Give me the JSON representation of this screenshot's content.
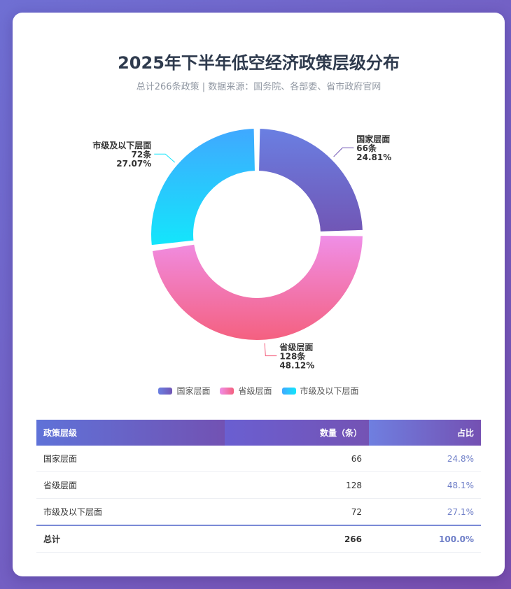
{
  "chart_data": {
    "type": "pie",
    "title": "2025年下半年低空经济政策层级分布",
    "subtitle": "总计266条政策 | 数据来源：国务院、各部委、省市政府官网",
    "categories": [
      "国家层面",
      "省级层面",
      "市级及以下层面"
    ],
    "values": [
      66,
      128,
      72
    ],
    "percent_labels": [
      "24.81%",
      "48.12%",
      "27.07%"
    ],
    "count_labels": [
      "66条",
      "128条",
      "72条"
    ],
    "colors": [
      [
        "#6a7fe2",
        "#7156b5"
      ],
      [
        "#f08fe8",
        "#f4607f"
      ],
      [
        "#40a8ff",
        "#13e6fb"
      ]
    ],
    "legend_position": "bottom"
  },
  "table": {
    "headers": [
      "政策层级",
      "数量（条）",
      "占比"
    ],
    "rows": [
      [
        "国家层面",
        "66",
        "24.8%"
      ],
      [
        "省级层面",
        "128",
        "48.1%"
      ],
      [
        "市级及以下层面",
        "72",
        "27.1%"
      ]
    ],
    "total": [
      "总计",
      "266",
      "100.0%"
    ]
  }
}
